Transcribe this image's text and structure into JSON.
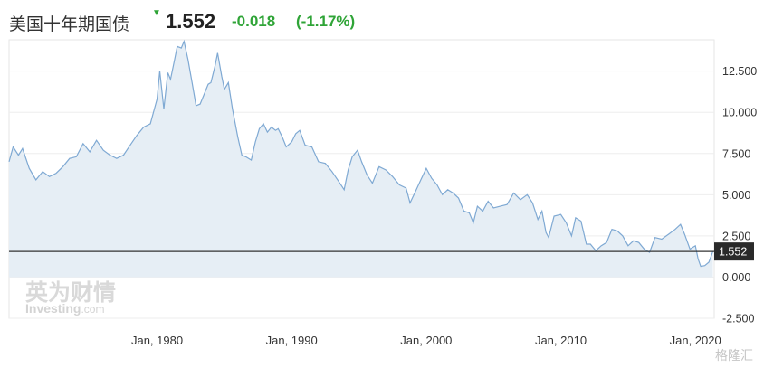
{
  "header": {
    "title": "美国十年期国债",
    "direction_icon": "triangle-down-icon",
    "price": "1.552",
    "change": "-0.018",
    "change_pct": "(-1.17%)"
  },
  "colors": {
    "line": "#7fa9d3",
    "area_fill": "#e6eef5",
    "down": "#2fa437",
    "current_line": "#333333",
    "current_label_bg": "#2a2a2a"
  },
  "watermark": {
    "brand_cn": "英为财情",
    "brand_en": "Investing",
    "brand_suffix": ".com"
  },
  "corner_watermark": "格隆汇",
  "chart_data": {
    "type": "area",
    "title": "",
    "xlabel": "",
    "ylabel": "",
    "ylim": [
      -2.5,
      14.4
    ],
    "xlim": [
      1969.0,
      2021.4
    ],
    "grid": true,
    "y_ticks": [
      "12.500",
      "10.000",
      "7.500",
      "5.000",
      "2.500",
      "0.000",
      "-2.500"
    ],
    "y_tick_values": [
      12.5,
      10,
      7.5,
      5,
      2.5,
      0,
      -2.5
    ],
    "x_ticks": [
      "Jan, 1980",
      "Jan, 1990",
      "Jan, 2000",
      "Jan, 2010",
      "Jan, 2020"
    ],
    "x_tick_values": [
      1980,
      1990,
      2000,
      2010,
      2020
    ],
    "current_value": 1.552,
    "current_label": "1.552",
    "series": [
      {
        "x": [
          1969.0,
          1969.3,
          1969.7,
          1970.0,
          1970.5,
          1971.0,
          1971.5,
          1972.0,
          1972.5,
          1973.0,
          1973.5,
          1974.0,
          1974.5,
          1975.0,
          1975.5,
          1976.0,
          1976.5,
          1977.0,
          1977.5,
          1978.0,
          1978.5,
          1979.0,
          1979.5,
          1980.0,
          1980.2,
          1980.5,
          1980.8,
          1981.0,
          1981.3,
          1981.5,
          1981.8,
          1982.0,
          1982.3,
          1982.6,
          1982.9,
          1983.2,
          1983.5,
          1983.8,
          1984.0,
          1984.3,
          1984.5,
          1984.8,
          1985.0,
          1985.3,
          1985.6,
          1986.0,
          1986.3,
          1986.6,
          1987.0,
          1987.3,
          1987.6,
          1987.9,
          1988.2,
          1988.5,
          1988.8,
          1989.0,
          1989.3,
          1989.6,
          1990.0,
          1990.3,
          1990.6,
          1991.0,
          1991.5,
          1992.0,
          1992.5,
          1993.0,
          1993.5,
          1993.9,
          1994.2,
          1994.5,
          1994.9,
          1995.2,
          1995.6,
          1996.0,
          1996.5,
          1997.0,
          1997.5,
          1998.0,
          1998.5,
          1998.8,
          1999.2,
          1999.6,
          2000.0,
          2000.4,
          2000.8,
          2001.2,
          2001.6,
          2002.0,
          2002.4,
          2002.8,
          2003.2,
          2003.5,
          2003.8,
          2004.2,
          2004.6,
          2005.0,
          2005.5,
          2006.0,
          2006.5,
          2007.0,
          2007.5,
          2007.9,
          2008.3,
          2008.6,
          2008.9,
          2009.1,
          2009.5,
          2010.0,
          2010.4,
          2010.8,
          2011.1,
          2011.5,
          2011.9,
          2012.2,
          2012.6,
          2013.0,
          2013.4,
          2013.8,
          2014.2,
          2014.6,
          2015.0,
          2015.4,
          2015.8,
          2016.2,
          2016.6,
          2017.0,
          2017.5,
          2018.0,
          2018.5,
          2018.9,
          2019.2,
          2019.6,
          2020.0,
          2020.2,
          2020.4,
          2020.7,
          2021.0,
          2021.3
        ],
        "y": [
          7.0,
          7.9,
          7.4,
          7.8,
          6.6,
          5.9,
          6.4,
          6.1,
          6.3,
          6.7,
          7.2,
          7.3,
          8.1,
          7.6,
          8.3,
          7.7,
          7.4,
          7.2,
          7.4,
          8.0,
          8.6,
          9.1,
          9.3,
          10.8,
          12.5,
          10.2,
          12.4,
          12.0,
          13.2,
          14.0,
          13.9,
          14.3,
          13.2,
          11.8,
          10.4,
          10.5,
          11.1,
          11.7,
          11.8,
          12.8,
          13.6,
          12.2,
          11.4,
          11.8,
          10.2,
          8.5,
          7.4,
          7.3,
          7.1,
          8.2,
          9.0,
          9.3,
          8.8,
          9.1,
          8.9,
          9.0,
          8.5,
          7.9,
          8.2,
          8.7,
          8.9,
          8.0,
          7.9,
          7.0,
          6.9,
          6.4,
          5.8,
          5.3,
          6.5,
          7.3,
          7.7,
          7.0,
          6.2,
          5.7,
          6.7,
          6.5,
          6.1,
          5.6,
          5.4,
          4.5,
          5.2,
          5.9,
          6.6,
          6.0,
          5.6,
          5.0,
          5.3,
          5.1,
          4.8,
          4.0,
          3.9,
          3.3,
          4.3,
          4.0,
          4.6,
          4.2,
          4.3,
          4.4,
          5.1,
          4.7,
          5.0,
          4.5,
          3.5,
          4.0,
          2.7,
          2.4,
          3.7,
          3.8,
          3.3,
          2.5,
          3.6,
          3.4,
          2.0,
          2.0,
          1.6,
          1.9,
          2.1,
          2.9,
          2.8,
          2.5,
          1.9,
          2.2,
          2.1,
          1.7,
          1.5,
          2.4,
          2.3,
          2.6,
          2.9,
          3.2,
          2.6,
          1.7,
          1.9,
          1.1,
          0.65,
          0.7,
          0.9,
          1.55
        ]
      }
    ]
  }
}
